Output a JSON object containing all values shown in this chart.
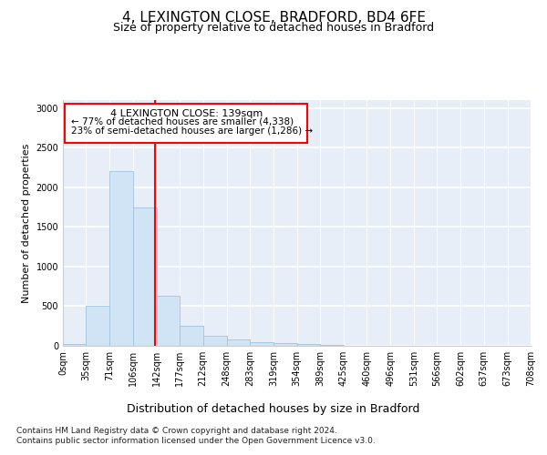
{
  "title": "4, LEXINGTON CLOSE, BRADFORD, BD4 6FE",
  "subtitle": "Size of property relative to detached houses in Bradford",
  "xlabel": "Distribution of detached houses by size in Bradford",
  "ylabel": "Number of detached properties",
  "bar_color": "#d0e4f5",
  "bar_edge_color": "#a0c4e0",
  "background_color": "#e8eef8",
  "grid_color": "#ffffff",
  "red_line_x": 139,
  "annotation_text_line1": "4 LEXINGTON CLOSE: 139sqm",
  "annotation_text_line2": "← 77% of detached houses are smaller (4,338)",
  "annotation_text_line3": "23% of semi-detached houses are larger (1,286) →",
  "footer1": "Contains HM Land Registry data © Crown copyright and database right 2024.",
  "footer2": "Contains public sector information licensed under the Open Government Licence v3.0.",
  "bin_edges": [
    0,
    35,
    71,
    106,
    142,
    177,
    212,
    248,
    283,
    319,
    354,
    389,
    425,
    460,
    496,
    531,
    566,
    602,
    637,
    673,
    708
  ],
  "bin_labels": [
    "0sqm",
    "35sqm",
    "71sqm",
    "106sqm",
    "142sqm",
    "177sqm",
    "212sqm",
    "248sqm",
    "283sqm",
    "319sqm",
    "354sqm",
    "389sqm",
    "425sqm",
    "460sqm",
    "496sqm",
    "531sqm",
    "566sqm",
    "602sqm",
    "637sqm",
    "673sqm",
    "708sqm"
  ],
  "bar_heights": [
    25,
    510,
    2200,
    1750,
    630,
    255,
    130,
    75,
    50,
    35,
    18,
    10,
    5,
    3,
    1,
    0,
    0,
    0,
    0,
    0
  ],
  "ylim": [
    0,
    3100
  ],
  "yticks": [
    0,
    500,
    1000,
    1500,
    2000,
    2500,
    3000
  ],
  "title_fontsize": 11,
  "subtitle_fontsize": 9,
  "ylabel_fontsize": 8,
  "tick_fontsize": 7,
  "xlabel_fontsize": 9,
  "footer_fontsize": 6.5
}
